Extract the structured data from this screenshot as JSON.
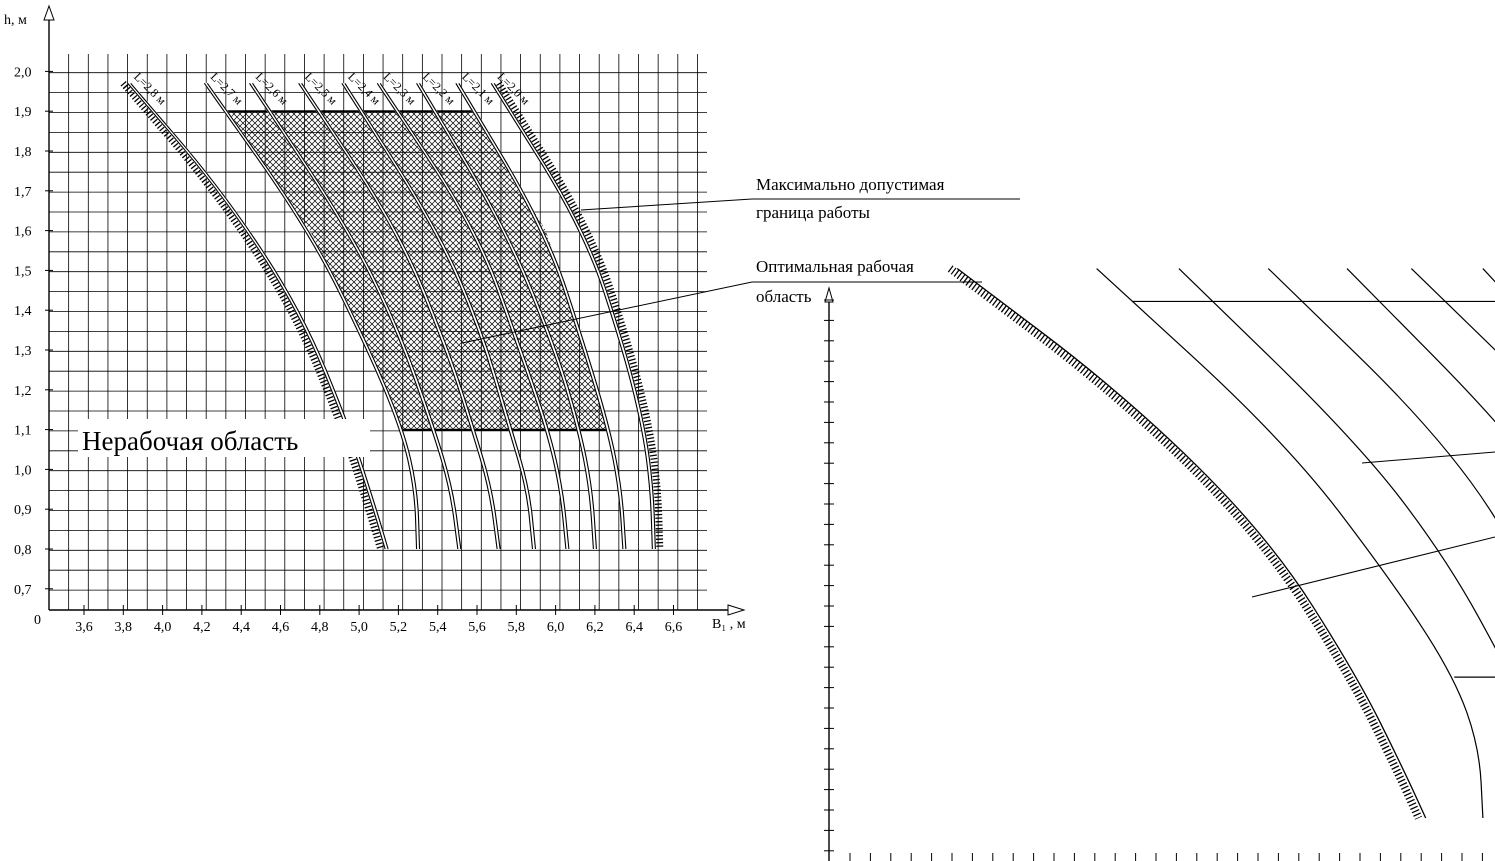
{
  "chart_data": [
    {
      "type": "line",
      "xlabel": "B₁ , м",
      "ylabel": "h, м",
      "origin_label": "0",
      "xlim": [
        3.45,
        6.8
      ],
      "ylim": [
        0.62,
        2.05
      ],
      "x_ticks": [
        "3,6",
        "3,8",
        "4,0",
        "4,2",
        "4,4",
        "4,6",
        "4,8",
        "5,0",
        "5,2",
        "5,4",
        "5,6",
        "5,8",
        "6,0",
        "6,2",
        "6,4",
        "6,6"
      ],
      "y_ticks": [
        "0,7",
        "0,8",
        "0,9",
        "1,0",
        "1,1",
        "1,2",
        "1,3",
        "1,4",
        "1,5",
        "1,6",
        "1,7",
        "1,8",
        "1,9",
        "2,0"
      ],
      "grid": true,
      "series": [
        {
          "name": "L=2,8 м",
          "x": [
            3.83,
            4.3,
            4.7,
            4.95,
            5.08,
            5.14
          ],
          "y": [
            1.97,
            1.7,
            1.4,
            1.1,
            0.9,
            0.8
          ],
          "boundary": true
        },
        {
          "name": "L=2,7 м",
          "x": [
            4.22,
            4.75,
            5.05,
            5.22,
            5.29,
            5.3
          ],
          "y": [
            1.97,
            1.6,
            1.3,
            1.1,
            0.95,
            0.8
          ]
        },
        {
          "name": "L=2,6 м",
          "x": [
            4.45,
            4.95,
            5.2,
            5.38,
            5.47,
            5.51
          ],
          "y": [
            1.97,
            1.6,
            1.35,
            1.1,
            0.95,
            0.8
          ]
        },
        {
          "name": "L=2,5 м",
          "x": [
            4.7,
            5.2,
            5.45,
            5.58,
            5.67,
            5.71
          ],
          "y": [
            1.97,
            1.6,
            1.3,
            1.1,
            0.95,
            0.8
          ]
        },
        {
          "name": "L=2,4 м",
          "x": [
            4.92,
            5.4,
            5.62,
            5.77,
            5.86,
            5.89
          ],
          "y": [
            1.97,
            1.6,
            1.35,
            1.1,
            0.95,
            0.8
          ]
        },
        {
          "name": "L=2,3 м",
          "x": [
            5.1,
            5.6,
            5.82,
            5.96,
            6.03,
            6.06
          ],
          "y": [
            1.97,
            1.6,
            1.3,
            1.1,
            0.95,
            0.8
          ]
        },
        {
          "name": "L=2,2 м",
          "x": [
            5.3,
            5.75,
            6.0,
            6.12,
            6.18,
            6.2
          ],
          "y": [
            1.97,
            1.6,
            1.3,
            1.1,
            0.95,
            0.8
          ]
        },
        {
          "name": "L=2,1 м",
          "x": [
            5.5,
            5.95,
            6.15,
            6.27,
            6.33,
            6.35
          ],
          "y": [
            1.97,
            1.6,
            1.3,
            1.1,
            0.95,
            0.8
          ]
        },
        {
          "name": "L=2,0 м",
          "x": [
            5.68,
            6.15,
            6.35,
            6.45,
            6.49,
            6.5
          ],
          "y": [
            1.97,
            1.6,
            1.3,
            1.1,
            0.95,
            0.8
          ],
          "boundary": true
        }
      ],
      "optimal_area": {
        "h_min": 1.1,
        "h_max": 1.9
      },
      "annotations": [
        {
          "text": "Максимально допустимая",
          "text2": "граница работы"
        },
        {
          "text": "Оптимальная рабочая",
          "text2": "область"
        },
        {
          "text": "Нерабочая область"
        }
      ]
    },
    {
      "type": "line",
      "title": "",
      "note": "enlarged duplicate of the same curve family without labels",
      "series_count": 9,
      "optimal_area": {
        "h_min": 1.1,
        "h_max": 1.9
      }
    }
  ]
}
